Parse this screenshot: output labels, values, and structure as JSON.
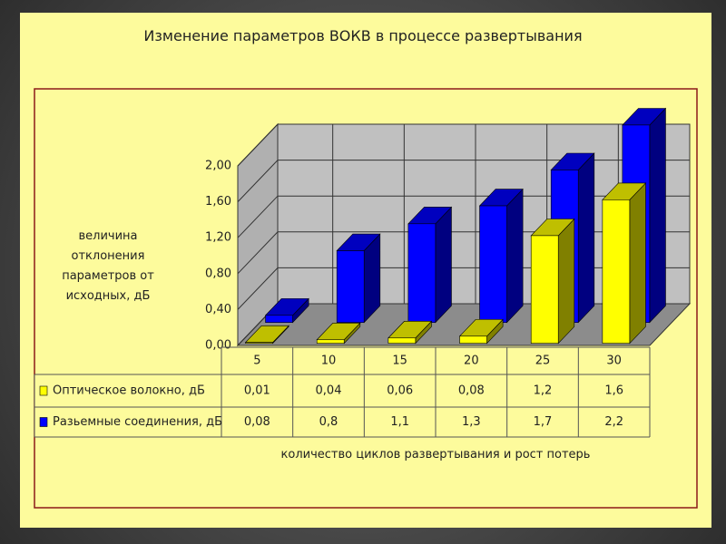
{
  "chart_data": {
    "type": "bar3d",
    "title": "Изменение параметров ВОКВ в процессе развертывания",
    "y_label": "величина отклонения параметров от исходных, дБ",
    "x_label": "количество циклов развертывания и рост потерь",
    "categories": [
      "5",
      "10",
      "15",
      "20",
      "25",
      "30"
    ],
    "series": [
      {
        "name": "Оптическое волокно, дБ",
        "color": "#ffff00",
        "values": [
          0.01,
          0.04,
          0.06,
          0.08,
          1.2,
          1.6
        ],
        "value_labels": [
          "0,01",
          "0,04",
          "0,06",
          "0,08",
          "1,2",
          "1,6"
        ]
      },
      {
        "name": "Разьемные соединения, дБ",
        "color": "#0000ff",
        "values": [
          0.08,
          0.8,
          1.1,
          1.3,
          1.7,
          2.2
        ],
        "value_labels": [
          "0,08",
          "0,8",
          "1,1",
          "1,3",
          "1,7",
          "2,2"
        ]
      }
    ],
    "ylim": [
      0,
      2
    ],
    "yticks": [
      {
        "value": 0,
        "label": "0,00"
      },
      {
        "value": 0.4,
        "label": "0,40"
      },
      {
        "value": 0.8,
        "label": "0,80"
      },
      {
        "value": 1.2,
        "label": "1,20"
      },
      {
        "value": 1.6,
        "label": "1,60"
      },
      {
        "value": 2,
        "label": "2,00"
      }
    ],
    "grid": true
  }
}
